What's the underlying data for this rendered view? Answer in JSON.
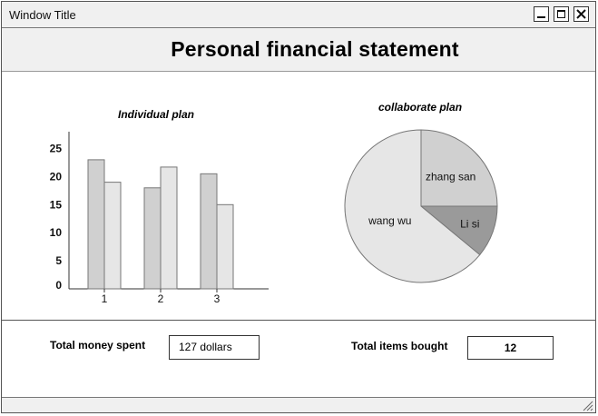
{
  "window": {
    "title": "Window Title"
  },
  "header": {
    "title": "Personal financial statement"
  },
  "icons": {
    "minimize": "minimize-icon",
    "maximize": "maximize-icon",
    "close": "close-icon",
    "resize": "resize-grip-icon"
  },
  "chart_data": [
    {
      "type": "bar",
      "title": "Individual plan",
      "categories": [
        "1",
        "2",
        "3"
      ],
      "series": [
        {
          "values": [
            23,
            18,
            20.5
          ],
          "color": "#d0d0d0"
        },
        {
          "values": [
            19,
            21.7,
            15
          ],
          "color": "#e6e6e6"
        }
      ],
      "yticks": [
        "0",
        "5",
        "10",
        "15",
        "20",
        "25"
      ],
      "ylim": [
        0,
        28
      ],
      "grid": false
    },
    {
      "type": "pie",
      "title": "collaborate plan",
      "slices": [
        {
          "label": "zhang san",
          "value": 25,
          "color": "#d0d0d0"
        },
        {
          "label": "Li si",
          "value": 11,
          "color": "#9a9a9a"
        },
        {
          "label": "wang wu",
          "value": 64,
          "color": "#e6e6e6"
        }
      ]
    }
  ],
  "form": {
    "money_label": "Total money spent",
    "money_value": "127 dollars",
    "items_label": "Total items bought",
    "items_value": "12"
  }
}
